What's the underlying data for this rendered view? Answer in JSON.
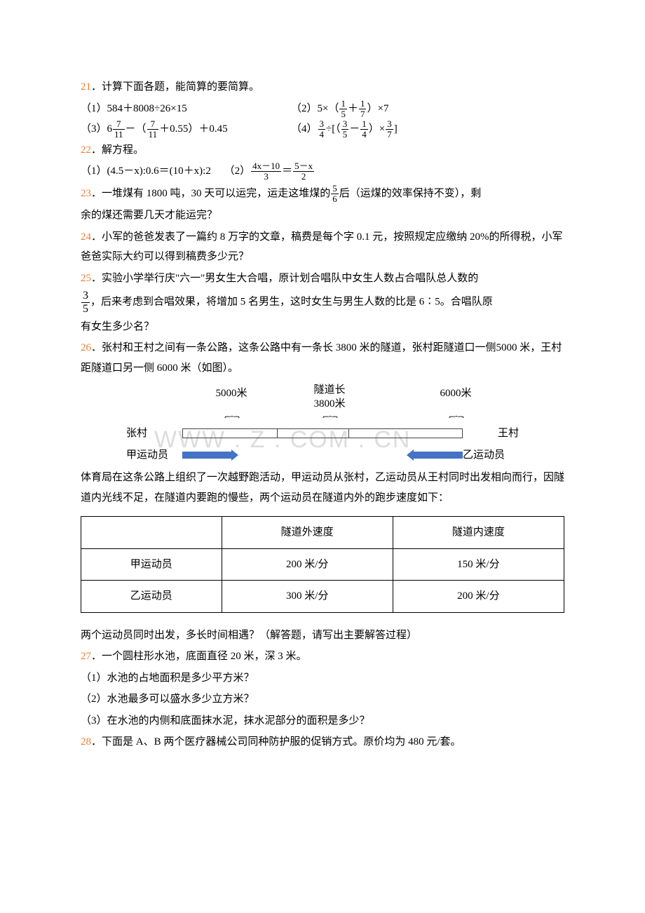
{
  "watermark": "WWW . Z                   . COM . CN",
  "q21": {
    "num": "21",
    "title": "．计算下面各题，能简算的要简算。",
    "p1_label": "（1）584＋8008÷26×15",
    "p2_label_a": "（2）5×（",
    "p2_frac1_n": "1",
    "p2_frac1_d": "5",
    "p2_mid": "＋",
    "p2_frac2_n": "1",
    "p2_frac2_d": "7",
    "p2_label_b": "）×7",
    "p3_label_a": "（3）6",
    "p3_frac1_n": "7",
    "p3_frac1_d": "11",
    "p3_mid1": "－（",
    "p3_frac2_n": "7",
    "p3_frac2_d": "11",
    "p3_mid2": "＋0.55）＋0.45",
    "p4_label_a": "（4）",
    "p4_frac1_n": "3",
    "p4_frac1_d": "4",
    "p4_mid1": "÷[（",
    "p4_frac2_n": "3",
    "p4_frac2_d": "5",
    "p4_mid2": "－",
    "p4_frac3_n": "1",
    "p4_frac3_d": "4",
    "p4_mid3": "）×",
    "p4_frac4_n": "3",
    "p4_frac4_d": "7",
    "p4_label_b": "]"
  },
  "q22": {
    "num": "22",
    "title": "．解方程。",
    "p1": "（1）(4.5－x):0.6＝(10＋x):2",
    "p2_a": "（2）",
    "p2_f1n": "4x－10",
    "p2_f1d": "3",
    "p2_eq": "＝",
    "p2_f2n": "5－x",
    "p2_f2d": "2"
  },
  "q23": {
    "num": "23",
    "a": "．一堆煤有 1800 吨，30 天可以运完，运走这堆煤的",
    "fn": "5",
    "fd": "6",
    "b": "后（运煤的效率保持不变），剩",
    "c": "余的煤还需要几天才能运完？"
  },
  "q24": {
    "num": "24",
    "t": "．小军的爸爸发表了一篇约 8 万字的文章，稿费是每个字 0.1 元，按照规定应缴纳 20%的所得税，小军爸爸实际大约可以得到稿费多少元？"
  },
  "q25": {
    "num": "25",
    "a": "．实验小学举行庆\"六一\"男女生大合唱，原计划合唱队中女生人数占合唱队总人数的",
    "fn": "3",
    "fd": "5",
    "b": "，后来考虑到合唱效果，将增加 5 名男生，这时女生与男生人数的比是 6∶5。合唱队原",
    "c": "有女生多少名？"
  },
  "q26": {
    "num": "26",
    "a": "．张村和王村之间有一条公路，这条公路中有一条长 3800 米的隧道，张村距隧道口一侧5000 米，王村距隧道口另一侧 6000 米（如图）。",
    "diagram": {
      "d1": "5000米",
      "d2a": "隧道长",
      "d2b": "3800米",
      "d3": "6000米",
      "left_v": "张村",
      "right_v": "王村",
      "left_p": "甲运动员",
      "right_p": "乙运动员"
    },
    "b": "体育局在这条公路上组织了一次越野跑活动，甲运动员从张村，乙运动员从王村同时出发相向而行，因隧道内光线不足，在隧道内要跑的慢些，两个运动员在隧道内外的跑步速度如下：",
    "table": {
      "h1": "",
      "h2": "隧道外速度",
      "h3": "隧道内速度",
      "r1c1": "甲运动员",
      "r1c2": "200 米/分",
      "r1c3": "150 米/分",
      "r2c1": "乙运动员",
      "r2c2": "300 米/分",
      "r2c3": "200 米/分"
    },
    "c": "两个运动员同时出发，多长时间相遇？（解答题，请写出主要解答过程）"
  },
  "q27": {
    "num": "27",
    "t": "．一个圆柱形水池，底面直径 20 米，深 3 米。",
    "p1": "（1）水池的占地面积是多少平方米？",
    "p2": "（2）水池最多可以盛水多少立方米？",
    "p3": "（3）在水池的内侧和底面抹水泥，抹水泥部分的面积是多少？"
  },
  "q28": {
    "num": "28",
    "t": "．下面是 A、B 两个医疗器械公司同种防护服的促销方式。原价均为 480 元/套。"
  }
}
